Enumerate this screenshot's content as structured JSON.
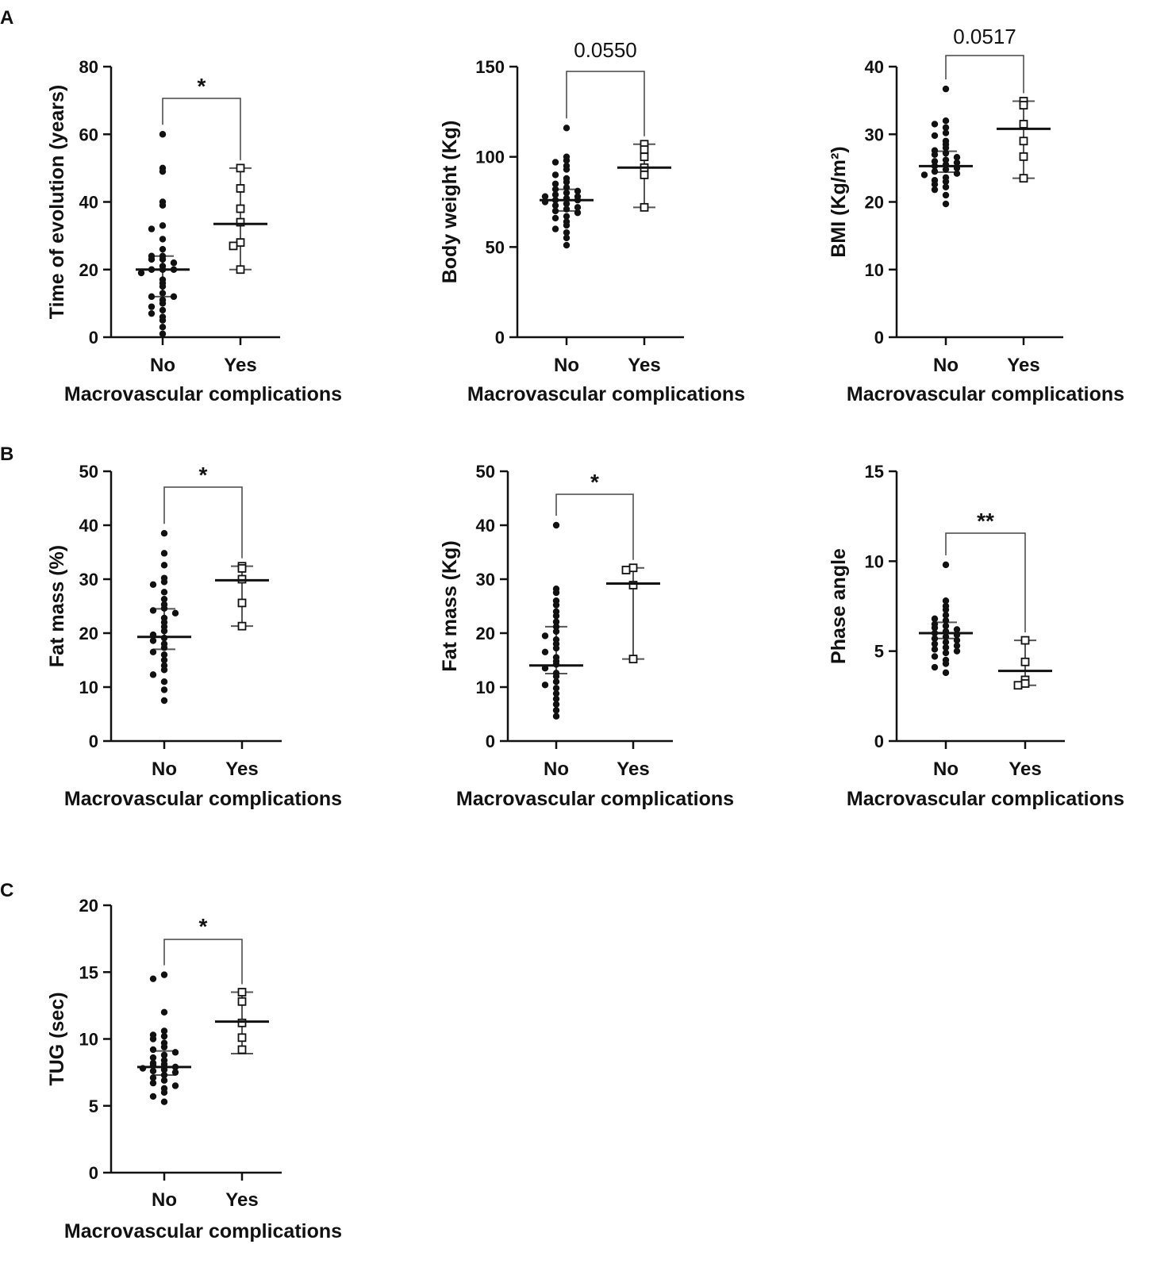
{
  "panel_letters": [
    "A",
    "B",
    "C"
  ],
  "colors": {
    "ink": "#111111",
    "bracket": "#444444",
    "errorbar": "#555555",
    "background": "#ffffff"
  },
  "chart_data": [
    {
      "panel": "A",
      "type": "scatter",
      "ylabel": "Time of evolution (years)",
      "xlabel": "Macrovascular complications",
      "categories": [
        "No",
        "Yes"
      ],
      "ylim": [
        0,
        80
      ],
      "yticks": [
        0,
        20,
        40,
        60,
        80
      ],
      "significance": "*",
      "series": [
        {
          "name": "No",
          "marker": "filled-circle",
          "center": 20,
          "errlow": 12,
          "errhigh": 24,
          "values": [
            60,
            50,
            49,
            40,
            39,
            33,
            32,
            29,
            26,
            24,
            24,
            23,
            23,
            22,
            21,
            20,
            20,
            20,
            19,
            17,
            16,
            15,
            13,
            12,
            12,
            11,
            10,
            9,
            8,
            7,
            6,
            5,
            3,
            1
          ]
        },
        {
          "name": "Yes",
          "marker": "open-square",
          "center": 33.5,
          "errlow": 20,
          "errhigh": 50,
          "values": [
            50,
            44,
            38,
            34,
            28,
            27,
            20
          ]
        }
      ]
    },
    {
      "panel": "A",
      "type": "scatter",
      "ylabel": "Body weight (Kg)",
      "xlabel": "Macrovascular complications",
      "categories": [
        "No",
        "Yes"
      ],
      "ylim": [
        0,
        150
      ],
      "yticks": [
        0,
        50,
        100,
        150
      ],
      "significance": "0.0550",
      "series": [
        {
          "name": "No",
          "marker": "filled-circle",
          "center": 76,
          "errlow": 70,
          "errhigh": 82,
          "values": [
            116,
            100,
            98,
            97,
            95,
            93,
            90,
            88,
            86,
            85,
            83,
            82,
            81,
            80,
            79,
            78,
            78,
            77,
            76,
            76,
            75,
            74,
            73,
            72,
            71,
            70,
            69,
            67,
            66,
            64,
            62,
            60,
            58,
            55,
            51
          ]
        },
        {
          "name": "Yes",
          "marker": "open-square",
          "center": 94,
          "errlow": 72,
          "errhigh": 107,
          "values": [
            107,
            104,
            100,
            94,
            90,
            72
          ]
        }
      ]
    },
    {
      "panel": "A",
      "type": "scatter",
      "ylabel": "BMI (Kg/m²)",
      "xlabel": "Macrovascular complications",
      "categories": [
        "No",
        "Yes"
      ],
      "ylim": [
        0,
        40
      ],
      "yticks": [
        0,
        10,
        20,
        30,
        40
      ],
      "significance": "0.0517",
      "series": [
        {
          "name": "No",
          "marker": "filled-circle",
          "center": 25.3,
          "errlow": 24.4,
          "errhigh": 27.5,
          "values": [
            36.7,
            32,
            31.5,
            31,
            30.2,
            29.8,
            29,
            28.5,
            28,
            27.6,
            27.2,
            27,
            26.6,
            26.2,
            26,
            25.8,
            25.5,
            25.3,
            25,
            24.8,
            24.5,
            24.2,
            24,
            23.6,
            23.2,
            23,
            22.6,
            22.2,
            21.8,
            21,
            19.7
          ]
        },
        {
          "name": "Yes",
          "marker": "open-square",
          "center": 30.8,
          "errlow": 23.5,
          "errhigh": 34.9,
          "values": [
            34.9,
            34.3,
            31.5,
            29,
            26.7,
            23.5
          ]
        }
      ]
    },
    {
      "panel": "B",
      "type": "scatter",
      "ylabel": "Fat mass (%)",
      "xlabel": "Macrovascular complications",
      "categories": [
        "No",
        "Yes"
      ],
      "ylim": [
        0,
        50
      ],
      "yticks": [
        0,
        10,
        20,
        30,
        40,
        50
      ],
      "significance": "*",
      "series": [
        {
          "name": "No",
          "marker": "filled-circle",
          "center": 19.3,
          "errlow": 17,
          "errhigh": 24.5,
          "values": [
            38.5,
            34.8,
            32.6,
            30.2,
            29.5,
            29,
            27.6,
            26.3,
            25.3,
            24.6,
            24.2,
            23.7,
            22.8,
            22,
            21.2,
            20.4,
            19.7,
            19.1,
            18.6,
            18,
            17.3,
            16.5,
            16,
            15,
            14,
            13.2,
            12.3,
            11,
            9.5,
            7.5
          ]
        },
        {
          "name": "Yes",
          "marker": "open-square",
          "center": 29.8,
          "errlow": 21.3,
          "errhigh": 32.4,
          "values": [
            32.4,
            32,
            30,
            25.6,
            21.3
          ]
        }
      ]
    },
    {
      "panel": "B",
      "type": "scatter",
      "ylabel": "Fat mass (Kg)",
      "xlabel": "Macrovascular complications",
      "categories": [
        "No",
        "Yes"
      ],
      "ylim": [
        0,
        50
      ],
      "yticks": [
        0,
        10,
        20,
        30,
        40,
        50
      ],
      "significance": "*",
      "series": [
        {
          "name": "No",
          "marker": "filled-circle",
          "center": 14,
          "errlow": 12.5,
          "errhigh": 21.2,
          "values": [
            40,
            28.2,
            27.5,
            26,
            25.2,
            24,
            23.2,
            22.1,
            21.2,
            20.3,
            19.5,
            18.8,
            18,
            17.2,
            16.5,
            15.5,
            14.8,
            14.2,
            13.5,
            12.6,
            12,
            11,
            10.4,
            9.8,
            8.8,
            7.8,
            6.8,
            5.7,
            4.6
          ]
        },
        {
          "name": "Yes",
          "marker": "open-square",
          "center": 29.2,
          "errlow": 15.2,
          "errhigh": 32.1,
          "values": [
            32.1,
            31.7,
            28.9,
            15.2
          ]
        }
      ]
    },
    {
      "panel": "B",
      "type": "scatter",
      "ylabel": "Phase angle",
      "xlabel": "Macrovascular complications",
      "categories": [
        "No",
        "Yes"
      ],
      "ylim": [
        0,
        15
      ],
      "yticks": [
        0,
        5,
        10,
        15
      ],
      "significance": "**",
      "series": [
        {
          "name": "No",
          "marker": "filled-circle",
          "center": 6,
          "errlow": 5.7,
          "errhigh": 6.6,
          "values": [
            9.8,
            7.8,
            7.5,
            7.3,
            7,
            6.8,
            6.7,
            6.5,
            6.4,
            6.3,
            6.2,
            6.1,
            6,
            5.9,
            5.8,
            5.7,
            5.6,
            5.5,
            5.4,
            5.3,
            5.2,
            5.1,
            5,
            4.9,
            4.7,
            4.5,
            4.3,
            4.1,
            3.8
          ]
        },
        {
          "name": "Yes",
          "marker": "open-square",
          "center": 3.9,
          "errlow": 3.1,
          "errhigh": 5.6,
          "values": [
            5.6,
            4.4,
            3.4,
            3.2,
            3.1
          ]
        }
      ]
    },
    {
      "panel": "C",
      "type": "scatter",
      "ylabel": "TUG (sec)",
      "xlabel": "Macrovascular complications",
      "categories": [
        "No",
        "Yes"
      ],
      "ylim": [
        0,
        20
      ],
      "yticks": [
        0,
        5,
        10,
        15,
        20
      ],
      "significance": "*",
      "series": [
        {
          "name": "No",
          "marker": "filled-circle",
          "center": 7.9,
          "errlow": 7.3,
          "errhigh": 9.1,
          "values": [
            14.8,
            14.5,
            12,
            10.6,
            10.3,
            10.2,
            10,
            9.7,
            9.4,
            9.2,
            9,
            8.8,
            8.6,
            8.4,
            8.2,
            8.1,
            8,
            7.9,
            7.8,
            7.7,
            7.6,
            7.5,
            7.3,
            7.1,
            6.9,
            6.7,
            6.5,
            6.3,
            6,
            5.7,
            5.3
          ]
        },
        {
          "name": "Yes",
          "marker": "open-square",
          "center": 11.3,
          "errlow": 8.9,
          "errhigh": 13.5,
          "values": [
            13.5,
            12.8,
            11.2,
            10.1,
            9.2
          ]
        }
      ]
    }
  ]
}
